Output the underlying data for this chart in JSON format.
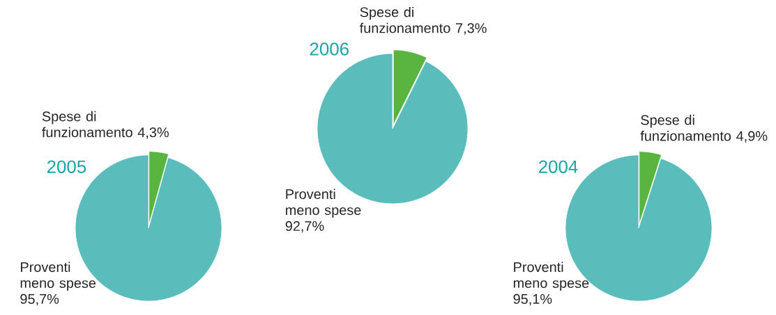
{
  "chart_data": [
    {
      "type": "pie",
      "title": "2005",
      "categories": [
        "Spese di funzionamento",
        "Proventi meno spese"
      ],
      "values": [
        4.3,
        95.7
      ],
      "value_labels": [
        "4,3%",
        "95,7%"
      ],
      "colors": [
        "#5ab540",
        "#5bbcbc"
      ]
    },
    {
      "type": "pie",
      "title": "2006",
      "categories": [
        "Spese di funzionamento",
        "Proventi meno spese"
      ],
      "values": [
        7.3,
        92.7
      ],
      "value_labels": [
        "7,3%",
        "92,7%"
      ],
      "colors": [
        "#5ab540",
        "#5bbcbc"
      ]
    },
    {
      "type": "pie",
      "title": "2004",
      "categories": [
        "Spese di funzionamento",
        "Proventi meno spese"
      ],
      "values": [
        4.9,
        95.1
      ],
      "value_labels": [
        "4,9%",
        "95,1%"
      ],
      "colors": [
        "#5ab540",
        "#5bbcbc"
      ]
    }
  ]
}
